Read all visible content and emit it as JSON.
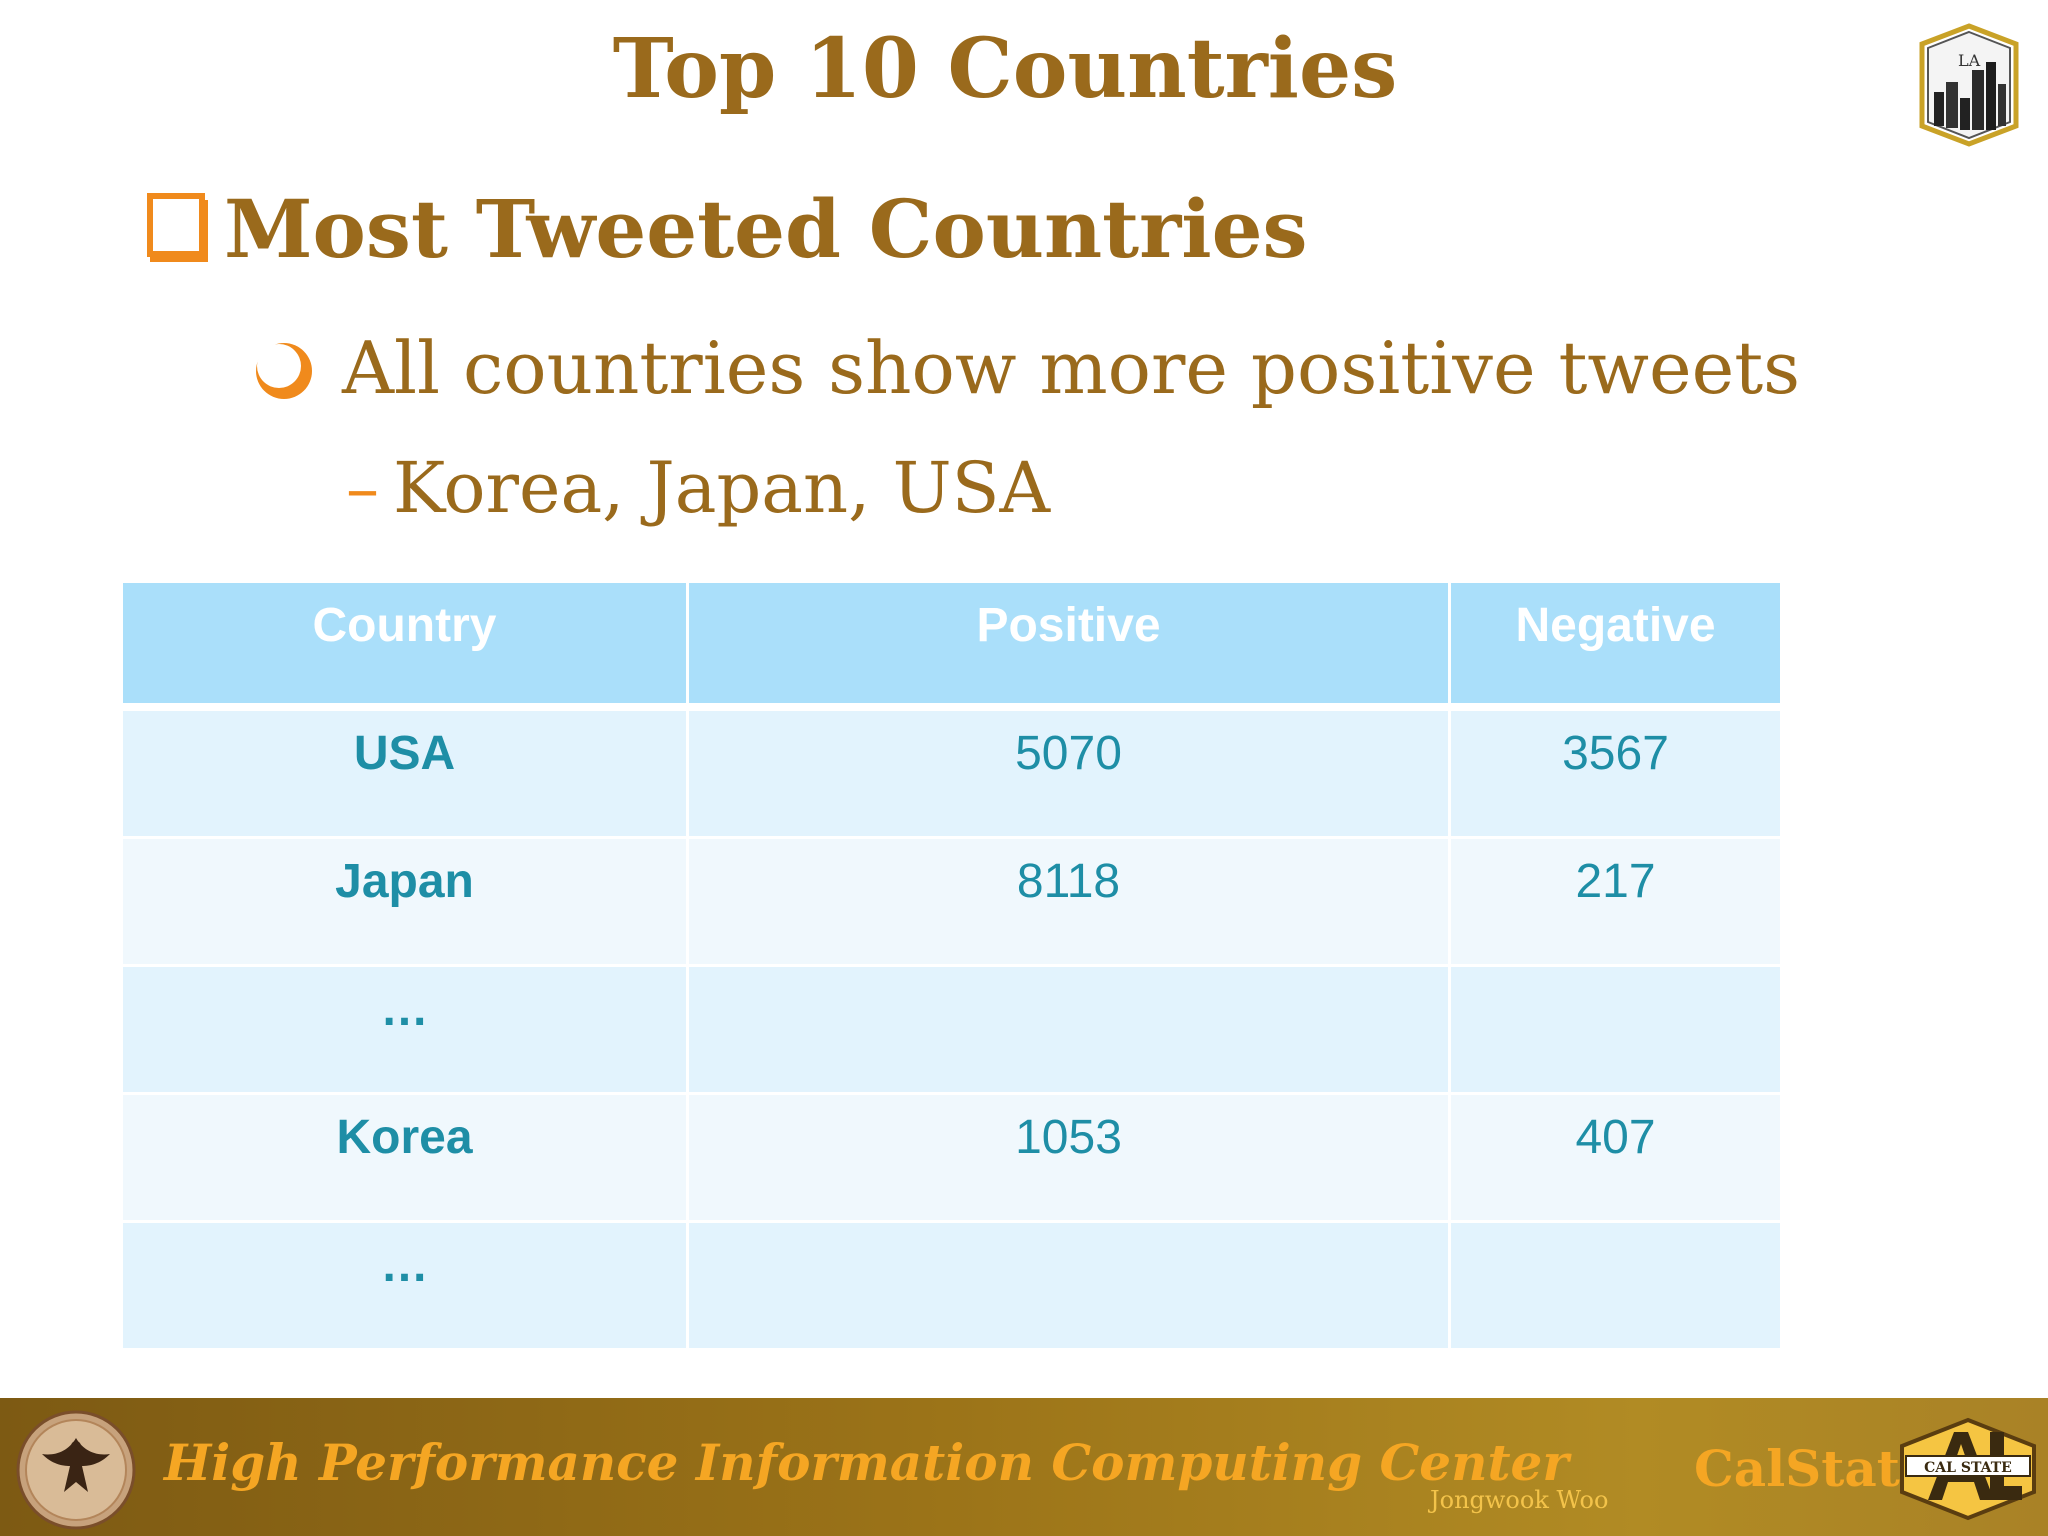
{
  "slide": {
    "title": "Top 10 Countries",
    "bullet1": "Most Tweeted Countries",
    "bullet2": "All countries show more positive tweets",
    "bullet3": "Korea, Japan, USA",
    "dash": "–"
  },
  "table": {
    "headers": [
      "Country",
      "Positive",
      "Negative"
    ],
    "rows": [
      {
        "country": "USA",
        "positive": "5070",
        "negative": "3567"
      },
      {
        "country": "Japan",
        "positive": "8118",
        "negative": "217"
      },
      {
        "country": "…",
        "positive": "",
        "negative": ""
      },
      {
        "country": "Korea",
        "positive": "1053",
        "negative": "407"
      },
      {
        "country": "…",
        "positive": "",
        "negative": ""
      }
    ]
  },
  "top_logo": {
    "text": "LA",
    "icon": "cal-state-la-building-logo"
  },
  "footer": {
    "center_name": "High Performance Information Computing Center",
    "author": "Jongwook Woo",
    "school": "CalStateLA",
    "logo_text": "CAL STATE",
    "seal_icon": "phoenix-seal-icon",
    "logo_icon": "cal-state-la-logo-icon"
  },
  "colors": {
    "title": "#9a6a1c",
    "accent": "#f08a1c",
    "header_bg": "#aadffa",
    "row_odd": "#e2f3fd",
    "row_even": "#f0f8fd",
    "cell_text": "#1e8ea6",
    "footer_text": "#f5a623"
  }
}
